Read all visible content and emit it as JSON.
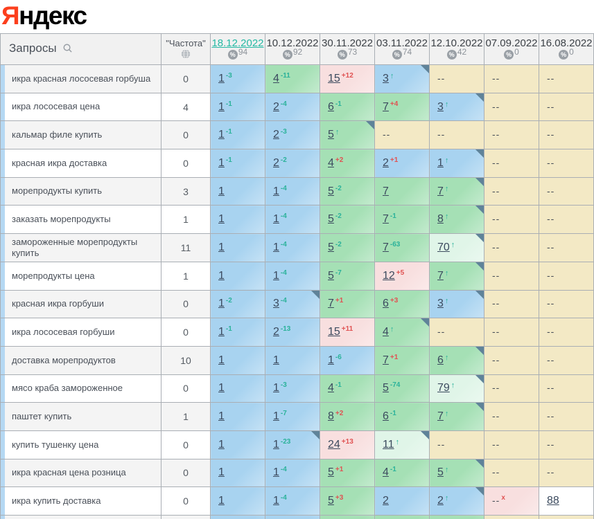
{
  "logo": {
    "prefix": "Я",
    "rest": "ндекс"
  },
  "colors": {
    "logo_red": "#fc3f1d",
    "top1_3_blue": "#a8d3f0",
    "top4_10_green": "#a5e0b5",
    "top11_plus_lightgreen": "#e0f5e8",
    "dropped_pink": "#f8dfdf",
    "not_found_beige": "#f3e9c5",
    "delta_up_teal": "#2bb29a",
    "delta_down_red": "#e05252",
    "active_date_teal": "#25b9a4",
    "corner_marker": "#5f8399"
  },
  "table": {
    "queries_header": "Запросы",
    "frequency_header": "\"Частота\"",
    "percent_symbol": "%",
    "dates": [
      {
        "label": "18.12.2022",
        "count": "94",
        "active": true
      },
      {
        "label": "10.12.2022",
        "count": "92",
        "active": false
      },
      {
        "label": "30.11.2022",
        "count": "73",
        "active": false
      },
      {
        "label": "03.11.2022",
        "count": "74",
        "active": false
      },
      {
        "label": "12.10.2022",
        "count": "42",
        "active": false
      },
      {
        "label": "07.09.2022",
        "count": "0",
        "active": false
      },
      {
        "label": "16.08.2022",
        "count": "0",
        "active": false
      }
    ],
    "rows": [
      {
        "q": "икра красная лососевая горбуша",
        "f": "0",
        "c": [
          {
            "v": "1",
            "d": "-3",
            "dc": "t",
            "bg": "b"
          },
          {
            "v": "4",
            "d": "-11",
            "dc": "t",
            "bg": "g"
          },
          {
            "v": "15",
            "d": "+12",
            "dc": "r",
            "bg": "p"
          },
          {
            "v": "3",
            "ar": true,
            "bg": "b",
            "cr": true
          },
          {
            "v": "--",
            "bg": "be"
          },
          {
            "v": "--",
            "bg": "be"
          },
          {
            "v": "--",
            "bg": "be"
          }
        ]
      },
      {
        "q": "икра лососевая цена",
        "f": "4",
        "c": [
          {
            "v": "1",
            "d": "-1",
            "dc": "t",
            "bg": "b"
          },
          {
            "v": "2",
            "d": "-4",
            "dc": "t",
            "bg": "b"
          },
          {
            "v": "6",
            "d": "-1",
            "dc": "t",
            "bg": "g"
          },
          {
            "v": "7",
            "d": "+4",
            "dc": "r",
            "bg": "g"
          },
          {
            "v": "3",
            "ar": true,
            "bg": "b",
            "cr": true
          },
          {
            "v": "--",
            "bg": "be"
          },
          {
            "v": "--",
            "bg": "be"
          }
        ]
      },
      {
        "q": "кальмар филе купить",
        "f": "0",
        "c": [
          {
            "v": "1",
            "d": "-1",
            "dc": "t",
            "bg": "b"
          },
          {
            "v": "2",
            "d": "-3",
            "dc": "t",
            "bg": "b"
          },
          {
            "v": "5",
            "ar": true,
            "bg": "g",
            "cr": true
          },
          {
            "v": "--",
            "bg": "be"
          },
          {
            "v": "--",
            "bg": "be"
          },
          {
            "v": "--",
            "bg": "be"
          },
          {
            "v": "--",
            "bg": "be"
          }
        ]
      },
      {
        "q": "красная икра доставка",
        "f": "0",
        "c": [
          {
            "v": "1",
            "d": "-1",
            "dc": "t",
            "bg": "b"
          },
          {
            "v": "2",
            "d": "-2",
            "dc": "t",
            "bg": "b"
          },
          {
            "v": "4",
            "d": "+2",
            "dc": "r",
            "bg": "g"
          },
          {
            "v": "2",
            "d": "+1",
            "dc": "r",
            "bg": "b"
          },
          {
            "v": "1",
            "ar": true,
            "bg": "b",
            "cr": true
          },
          {
            "v": "--",
            "bg": "be"
          },
          {
            "v": "--",
            "bg": "be"
          }
        ]
      },
      {
        "q": "морепродукты купить",
        "f": "3",
        "c": [
          {
            "v": "1",
            "bg": "b"
          },
          {
            "v": "1",
            "d": "-4",
            "dc": "t",
            "bg": "b"
          },
          {
            "v": "5",
            "d": "-2",
            "dc": "t",
            "bg": "g"
          },
          {
            "v": "7",
            "bg": "g"
          },
          {
            "v": "7",
            "ar": true,
            "bg": "g",
            "cr": true
          },
          {
            "v": "--",
            "bg": "be"
          },
          {
            "v": "--",
            "bg": "be"
          }
        ]
      },
      {
        "q": "заказать морепродукты",
        "f": "1",
        "c": [
          {
            "v": "1",
            "bg": "b"
          },
          {
            "v": "1",
            "d": "-4",
            "dc": "t",
            "bg": "b"
          },
          {
            "v": "5",
            "d": "-2",
            "dc": "t",
            "bg": "g"
          },
          {
            "v": "7",
            "d": "-1",
            "dc": "t",
            "bg": "g"
          },
          {
            "v": "8",
            "ar": true,
            "bg": "g",
            "cr": true
          },
          {
            "v": "--",
            "bg": "be"
          },
          {
            "v": "--",
            "bg": "be"
          }
        ]
      },
      {
        "q": "замороженные морепродукты купить",
        "f": "11",
        "c": [
          {
            "v": "1",
            "bg": "b"
          },
          {
            "v": "1",
            "d": "-4",
            "dc": "t",
            "bg": "b"
          },
          {
            "v": "5",
            "d": "-2",
            "dc": "t",
            "bg": "g"
          },
          {
            "v": "7",
            "d": "-63",
            "dc": "t",
            "bg": "g"
          },
          {
            "v": "70",
            "ar": true,
            "bg": "lg",
            "cr": true
          },
          {
            "v": "--",
            "bg": "be"
          },
          {
            "v": "--",
            "bg": "be"
          }
        ]
      },
      {
        "q": "морепродукты цена",
        "f": "1",
        "c": [
          {
            "v": "1",
            "bg": "b"
          },
          {
            "v": "1",
            "d": "-4",
            "dc": "t",
            "bg": "b"
          },
          {
            "v": "5",
            "d": "-7",
            "dc": "t",
            "bg": "g"
          },
          {
            "v": "12",
            "d": "+5",
            "dc": "r",
            "bg": "p"
          },
          {
            "v": "7",
            "ar": true,
            "bg": "g",
            "cr": true
          },
          {
            "v": "--",
            "bg": "be"
          },
          {
            "v": "--",
            "bg": "be"
          }
        ]
      },
      {
        "q": "красная икра горбуши",
        "f": "0",
        "c": [
          {
            "v": "1",
            "d": "-2",
            "dc": "t",
            "bg": "b"
          },
          {
            "v": "3",
            "d": "-4",
            "dc": "t",
            "bg": "b",
            "cr": true
          },
          {
            "v": "7",
            "d": "+1",
            "dc": "r",
            "bg": "g"
          },
          {
            "v": "6",
            "d": "+3",
            "dc": "r",
            "bg": "g"
          },
          {
            "v": "3",
            "ar": true,
            "bg": "b",
            "cr": true
          },
          {
            "v": "--",
            "bg": "be"
          },
          {
            "v": "--",
            "bg": "be"
          }
        ]
      },
      {
        "q": "икра лососевая горбуши",
        "f": "0",
        "c": [
          {
            "v": "1",
            "d": "-1",
            "dc": "t",
            "bg": "b"
          },
          {
            "v": "2",
            "d": "-13",
            "dc": "t",
            "bg": "b"
          },
          {
            "v": "15",
            "d": "+11",
            "dc": "r",
            "bg": "p"
          },
          {
            "v": "4",
            "ar": true,
            "bg": "g",
            "cr": true
          },
          {
            "v": "--",
            "bg": "be"
          },
          {
            "v": "--",
            "bg": "be"
          },
          {
            "v": "--",
            "bg": "be"
          }
        ]
      },
      {
        "q": "доставка морепродуктов",
        "f": "10",
        "c": [
          {
            "v": "1",
            "bg": "b"
          },
          {
            "v": "1",
            "bg": "b"
          },
          {
            "v": "1",
            "d": "-6",
            "dc": "t",
            "bg": "b"
          },
          {
            "v": "7",
            "d": "+1",
            "dc": "r",
            "bg": "g"
          },
          {
            "v": "6",
            "ar": true,
            "bg": "g",
            "cr": true
          },
          {
            "v": "--",
            "bg": "be"
          },
          {
            "v": "--",
            "bg": "be"
          }
        ]
      },
      {
        "q": "мясо краба замороженное",
        "f": "0",
        "c": [
          {
            "v": "1",
            "bg": "b"
          },
          {
            "v": "1",
            "d": "-3",
            "dc": "t",
            "bg": "b"
          },
          {
            "v": "4",
            "d": "-1",
            "dc": "t",
            "bg": "g"
          },
          {
            "v": "5",
            "d": "-74",
            "dc": "t",
            "bg": "g"
          },
          {
            "v": "79",
            "ar": true,
            "bg": "lg",
            "cr": true
          },
          {
            "v": "--",
            "bg": "be"
          },
          {
            "v": "--",
            "bg": "be"
          }
        ]
      },
      {
        "q": "паштет купить",
        "f": "1",
        "c": [
          {
            "v": "1",
            "bg": "b"
          },
          {
            "v": "1",
            "d": "-7",
            "dc": "t",
            "bg": "b"
          },
          {
            "v": "8",
            "d": "+2",
            "dc": "r",
            "bg": "g"
          },
          {
            "v": "6",
            "d": "-1",
            "dc": "t",
            "bg": "g"
          },
          {
            "v": "7",
            "ar": true,
            "bg": "g",
            "cr": true
          },
          {
            "v": "--",
            "bg": "be"
          },
          {
            "v": "--",
            "bg": "be"
          }
        ]
      },
      {
        "q": "купить тушенку цена",
        "f": "0",
        "c": [
          {
            "v": "1",
            "bg": "b"
          },
          {
            "v": "1",
            "d": "-23",
            "dc": "t",
            "bg": "b",
            "cr": true
          },
          {
            "v": "24",
            "d": "+13",
            "dc": "r",
            "bg": "p"
          },
          {
            "v": "11",
            "ar": true,
            "bg": "lg",
            "cr": true
          },
          {
            "v": "--",
            "bg": "be"
          },
          {
            "v": "--",
            "bg": "be"
          },
          {
            "v": "--",
            "bg": "be"
          }
        ]
      },
      {
        "q": "икра красная цена розница",
        "f": "0",
        "c": [
          {
            "v": "1",
            "bg": "b"
          },
          {
            "v": "1",
            "d": "-4",
            "dc": "t",
            "bg": "b"
          },
          {
            "v": "5",
            "d": "+1",
            "dc": "r",
            "bg": "g"
          },
          {
            "v": "4",
            "d": "-1",
            "dc": "t",
            "bg": "g"
          },
          {
            "v": "5",
            "ar": true,
            "bg": "g",
            "cr": true
          },
          {
            "v": "--",
            "bg": "be"
          },
          {
            "v": "--",
            "bg": "be"
          }
        ]
      },
      {
        "q": "икра купить доставка",
        "f": "0",
        "c": [
          {
            "v": "1",
            "bg": "b"
          },
          {
            "v": "1",
            "d": "-4",
            "dc": "t",
            "bg": "b"
          },
          {
            "v": "5",
            "d": "+3",
            "dc": "r",
            "bg": "g"
          },
          {
            "v": "2",
            "bg": "b"
          },
          {
            "v": "2",
            "ar": true,
            "bg": "b",
            "cr": true
          },
          {
            "v": "--",
            "d": "x",
            "dc": "r",
            "bg": "p"
          },
          {
            "v": "88",
            "bg": "w"
          }
        ]
      }
    ],
    "cut_row_bgs": [
      "b",
      "b",
      "g",
      "g",
      "g",
      "be",
      "be"
    ]
  }
}
